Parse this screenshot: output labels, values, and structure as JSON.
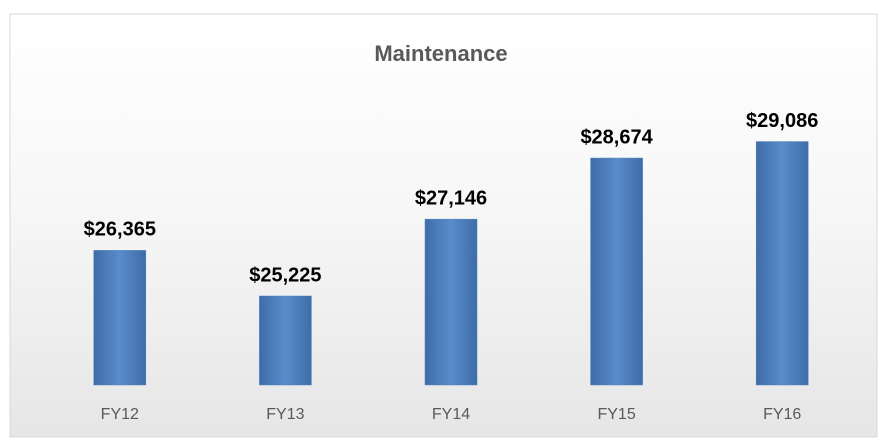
{
  "chart_data": {
    "type": "bar",
    "title": "Maintenance",
    "categories": [
      "FY12",
      "FY13",
      "FY14",
      "FY15",
      "FY16"
    ],
    "values": [
      26365,
      25225,
      27146,
      28674,
      29086
    ],
    "value_labels": [
      "$26,365",
      "$25,225",
      "$27,146",
      "$28,674",
      "$29,086"
    ],
    "color": "#4f81bd",
    "ylim": [
      23000,
      30000
    ]
  }
}
